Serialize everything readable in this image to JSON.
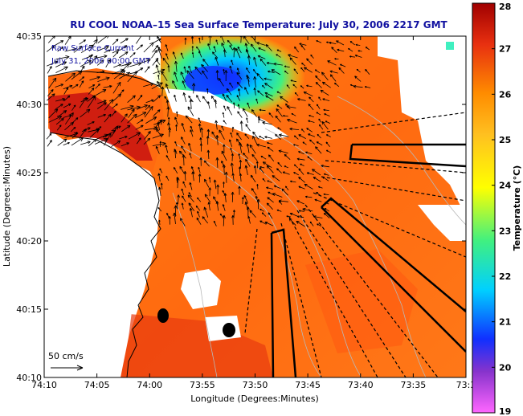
{
  "title": "RU COOL  NOAA–15  Sea Surface Temperature:  July 30, 2006 2217 GMT",
  "overlay_lines": [
    "Raw Surface Current",
    "July 31, 2006 00:00 GMT"
  ],
  "scale_label": "50 cm/s",
  "x_axis": {
    "label": "Longitude (Degrees:Minutes)",
    "ticks": [
      "74:10",
      "74:05",
      "74:00",
      "73:55",
      "73:50",
      "73:45",
      "73:40",
      "73:35",
      "73:3"
    ]
  },
  "y_axis": {
    "label": "Latitude (Degrees:Minutes)",
    "ticks": [
      "40:35",
      "40:30",
      "40:25",
      "40:20",
      "40:15",
      "40:10"
    ]
  },
  "colorbar": {
    "label": "Temperature (°C)",
    "ticks": [
      "28",
      "27",
      "26",
      "25",
      "24",
      "23",
      "22",
      "21",
      "20",
      "19"
    ],
    "min": 19,
    "max": 28,
    "colors": [
      "#ff66ff",
      "#8833cc",
      "#1030ff",
      "#00d0ff",
      "#40f080",
      "#ffff00",
      "#ffc020",
      "#ff8c00",
      "#e83010",
      "#a00000"
    ]
  }
}
